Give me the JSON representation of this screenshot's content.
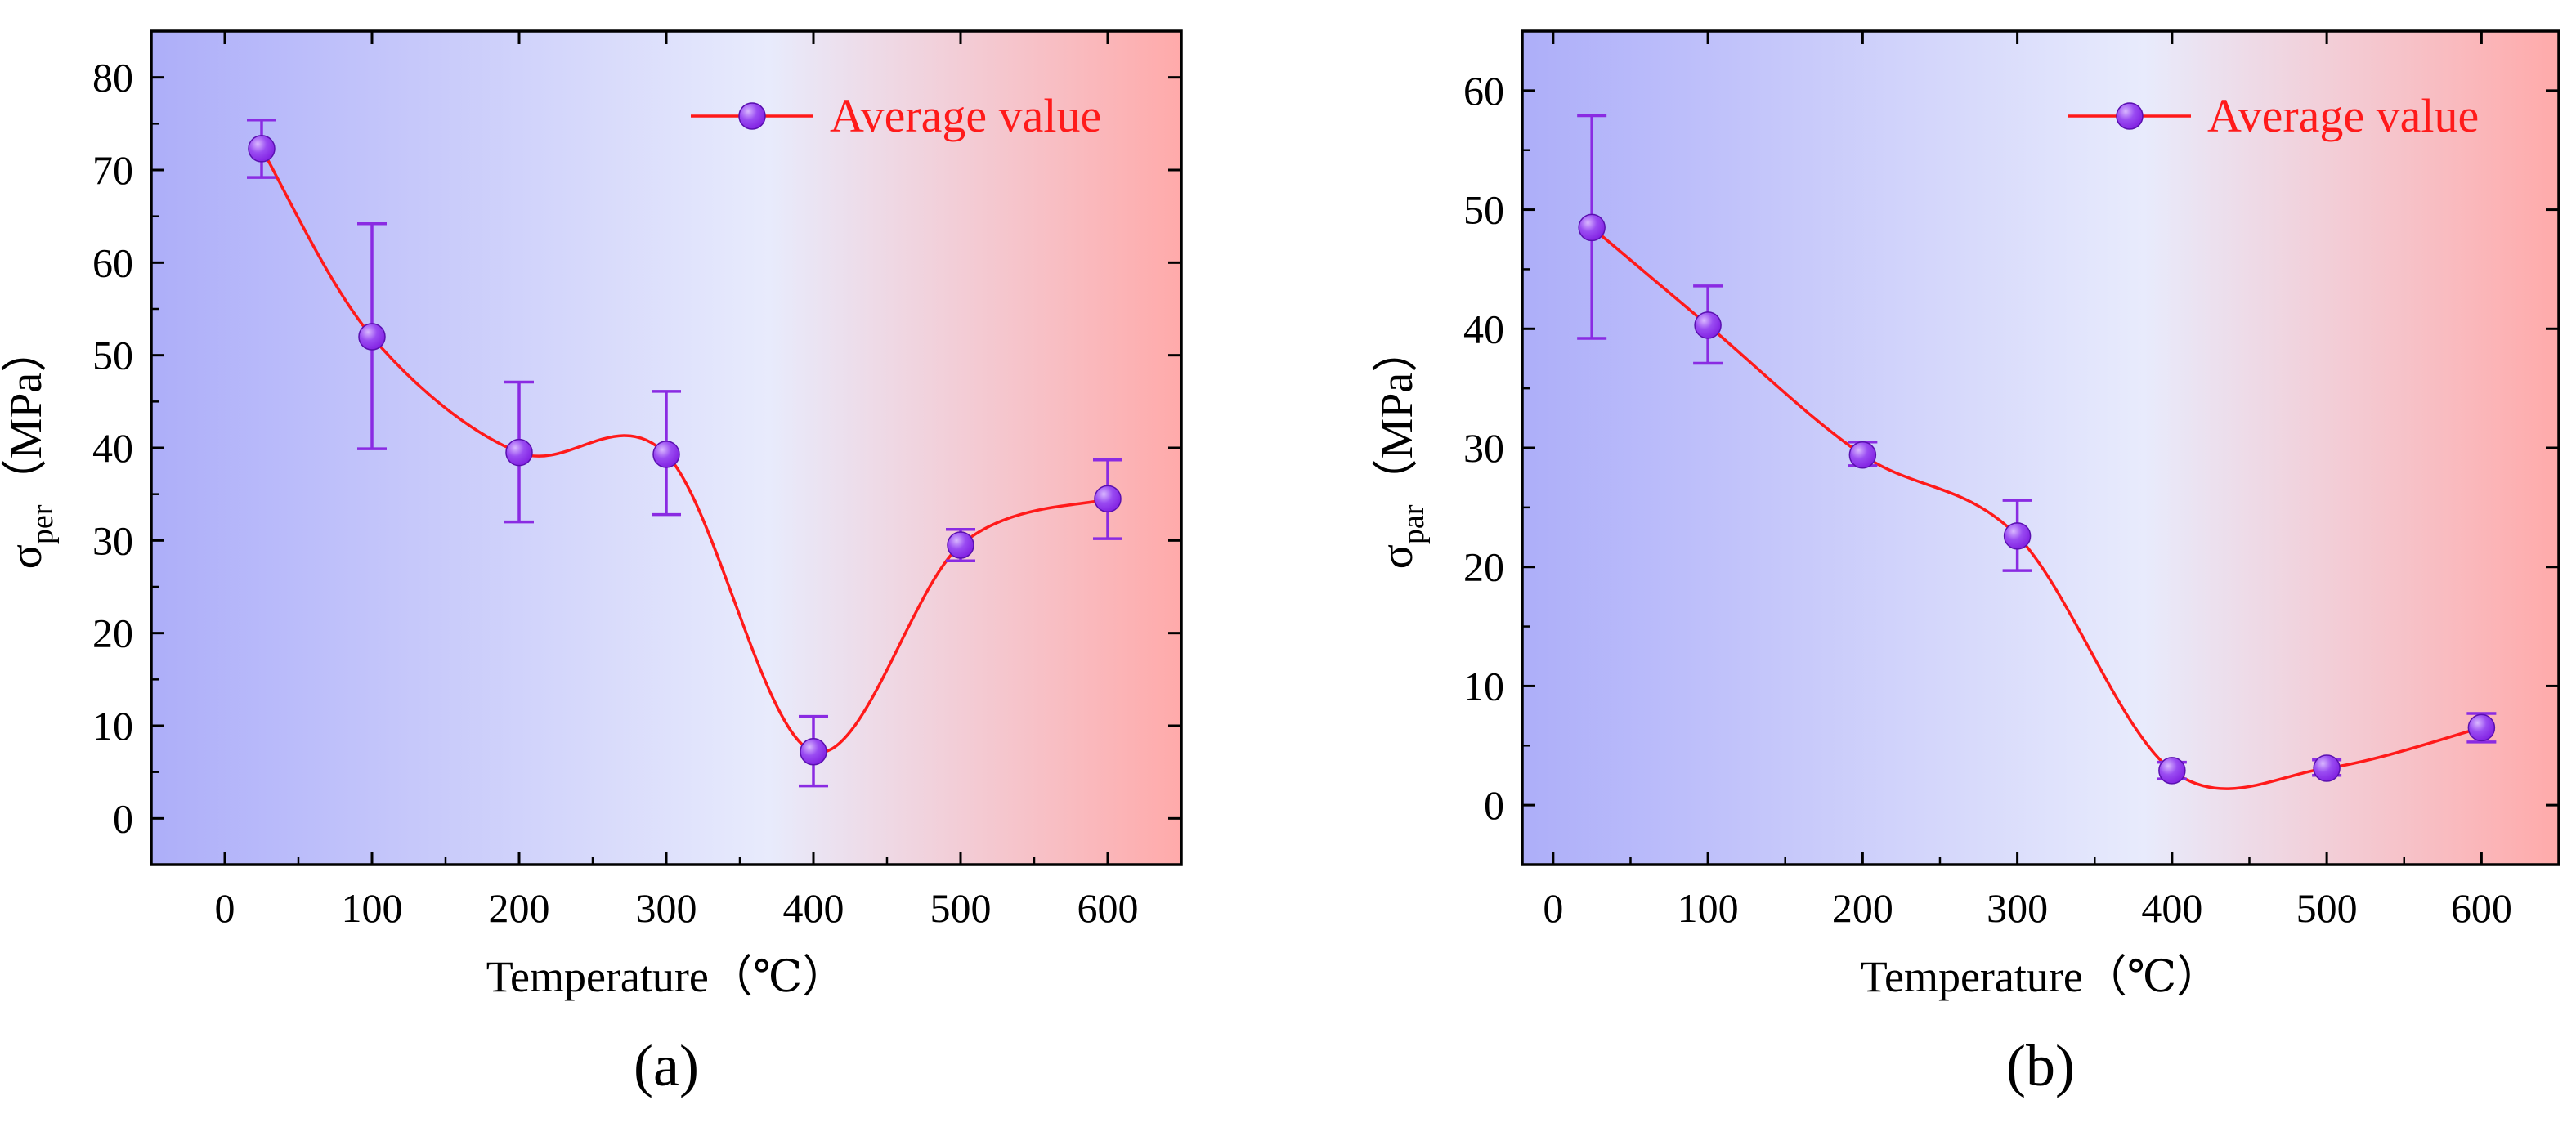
{
  "colors": {
    "line": "#ff1a1a",
    "marker": "#7f1de0",
    "marker_highlight": "#d9b8ff",
    "errorbar": "#8a2be2",
    "gradient_left": "#adaef9",
    "gradient_mid": "#e8ebfc",
    "gradient_right": "#ffaaaa",
    "legend_text": "#ff1a1a"
  },
  "chart_data": [
    {
      "type": "line",
      "panel_label": "(a)",
      "xlabel": "Temperature（℃）",
      "ylabel_base": "σ",
      "ylabel_sub": "per",
      "ylabel_unit": "（MPa）",
      "xlim": [
        -50,
        650
      ],
      "ylim": [
        -5,
        85
      ],
      "xticks": [
        "0",
        "100",
        "200",
        "300",
        "400",
        "500",
        "600"
      ],
      "yticks": [
        "0",
        "10",
        "20",
        "30",
        "40",
        "50",
        "60",
        "70",
        "80"
      ],
      "legend": {
        "label": "Average value",
        "position": "top-right"
      },
      "series": [
        {
          "name": "Average value",
          "x": [
            25,
            100,
            200,
            300,
            400,
            500,
            600
          ],
          "y": [
            72.3,
            52.0,
            39.5,
            39.3,
            7.2,
            29.5,
            34.5
          ],
          "err_low": [
            69.2,
            39.9,
            32.0,
            32.8,
            3.5,
            27.8,
            30.2
          ],
          "err_high": [
            75.4,
            64.2,
            47.1,
            46.1,
            11.0,
            31.2,
            38.7
          ]
        }
      ]
    },
    {
      "type": "line",
      "panel_label": "(b)",
      "xlabel": "Temperature（℃）",
      "ylabel_base": "σ",
      "ylabel_sub": "par",
      "ylabel_unit": "（MPa）",
      "xlim": [
        -20,
        650
      ],
      "ylim": [
        -5,
        65
      ],
      "xticks": [
        "0",
        "100",
        "200",
        "300",
        "400",
        "500",
        "600"
      ],
      "yticks": [
        "0",
        "10",
        "20",
        "30",
        "40",
        "50",
        "60"
      ],
      "legend": {
        "label": "Average value",
        "position": "top-right"
      },
      "series": [
        {
          "name": "Average value",
          "x": [
            25,
            100,
            200,
            300,
            400,
            500,
            600
          ],
          "y": [
            48.5,
            40.3,
            29.4,
            22.6,
            2.9,
            3.1,
            6.5
          ],
          "err_low": [
            39.2,
            37.1,
            28.5,
            19.7,
            2.2,
            2.5,
            5.3
          ],
          "err_high": [
            57.9,
            43.6,
            30.5,
            25.6,
            3.6,
            3.8,
            7.7
          ]
        }
      ]
    }
  ]
}
